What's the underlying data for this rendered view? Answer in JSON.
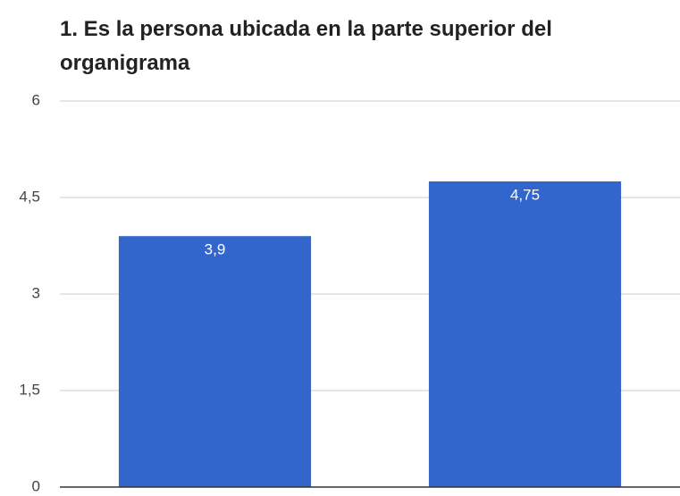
{
  "chart_data": {
    "type": "bar",
    "title": "1. Es la persona ubicada en la parte superior del organigrama",
    "categories": [
      null,
      null
    ],
    "values": [
      3.9,
      4.75
    ],
    "value_labels": [
      "3,9",
      "4,75"
    ],
    "color": "#3366cc",
    "ylim": [
      0,
      6
    ],
    "yticks": [
      0,
      {
        "value": 1.5,
        "label": "1,5"
      },
      3,
      {
        "value": 4.5,
        "label": "4,5"
      },
      6
    ],
    "grid": true
  }
}
